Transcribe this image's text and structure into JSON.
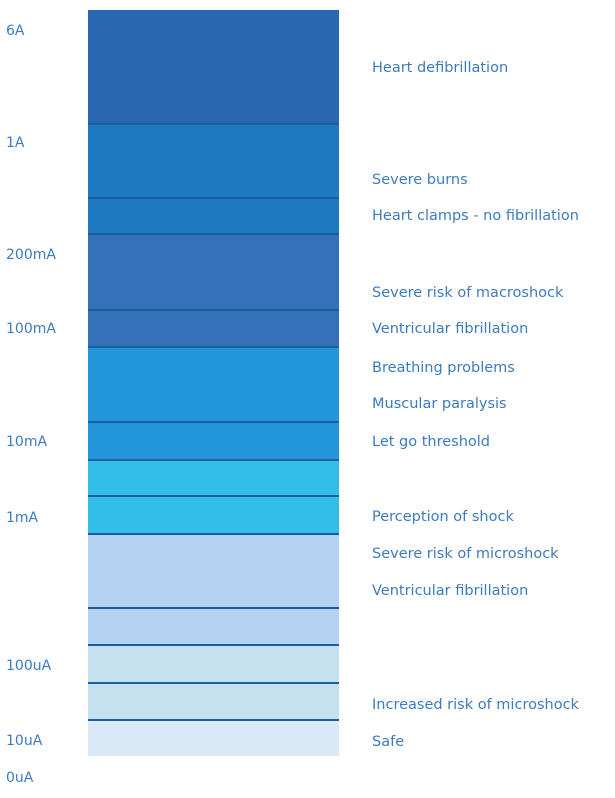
{
  "scale_labels": [
    "6A",
    "1A",
    "200mA",
    "100mA",
    "10mA",
    "1mA",
    "100uA",
    "10uA",
    "0uA"
  ],
  "effects": [
    "Heart defibrillation",
    "Severe burns",
    "Heart clamps - no fibrillation",
    "Severe risk of macroshock",
    "Ventricular fibrillation",
    "Breathing problems",
    "Muscular paralysis",
    "Let go threshold",
    "Perception of shock",
    "Severe risk of microshock",
    "Ventricular fibrillation",
    "Increased risk of microshock",
    "Safe"
  ],
  "band_colors": [
    "#2a67b1",
    "#1f79c1",
    "#1f79c1",
    "#3571b8",
    "#3571b8",
    "#2396db",
    "#2396db",
    "#33bde9",
    "#33bde9",
    "#b6d2f2",
    "#b6d2f2",
    "#c5e1ef",
    "#c5e1ef",
    "#dae9f8"
  ],
  "separator_color": "#1b5e9f"
}
